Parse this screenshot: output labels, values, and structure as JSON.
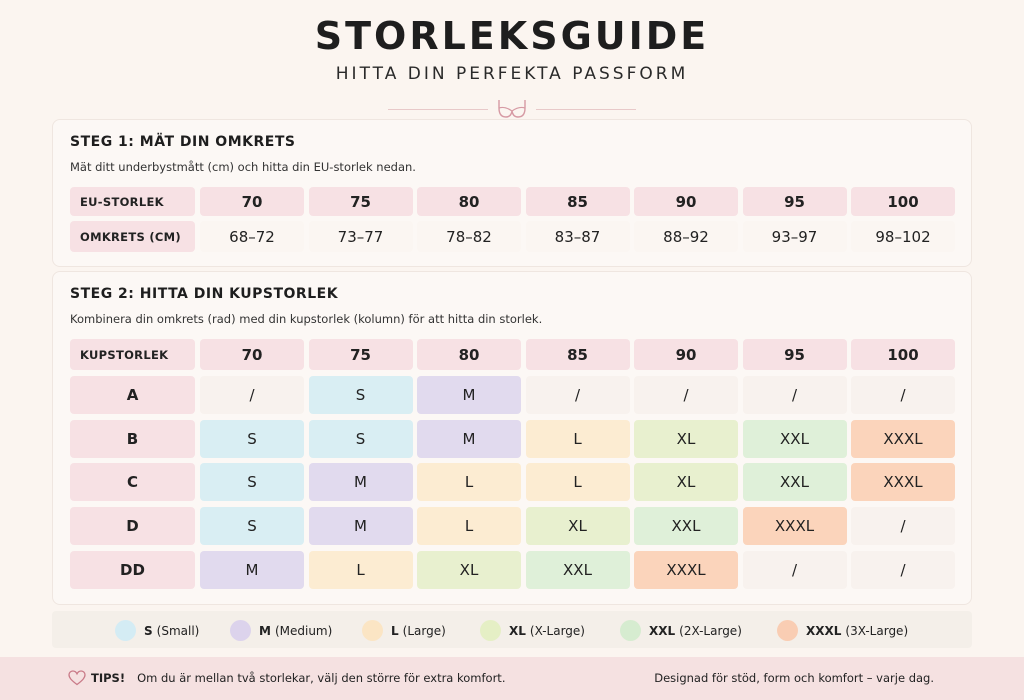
{
  "header": {
    "title": "STORLEKSGUIDE",
    "subtitle": "HITTA DIN PERFEKTA PASSFORM",
    "icon": "bra-icon"
  },
  "step1": {
    "heading": "STEG 1: MÄT DIN OMKRETS",
    "description": "Mät ditt underbystmått (cm) och hitta din EU-storlek nedan.",
    "eu_label": "EU-STORLEK",
    "measure_label": "OMKRETS (CM)",
    "eu_sizes": [
      "70",
      "75",
      "80",
      "85",
      "90",
      "95",
      "100"
    ],
    "measurements": [
      "68–72",
      "73–77",
      "78–82",
      "83–87",
      "88–92",
      "93–97",
      "98–102"
    ]
  },
  "step2": {
    "heading": "STEG 2: HITTA DIN KUPSTORLEK",
    "description": "Kombinera din omkrets (rad) med din kupstorlek (kolumn) för att hitta din storlek.",
    "corner_label": "KUPSTORLEK",
    "columns": [
      "70",
      "75",
      "80",
      "85",
      "90",
      "95",
      "100"
    ],
    "rows": [
      {
        "cup": "A",
        "values": [
          "/",
          "S",
          "M",
          "/",
          "/",
          "/",
          "/"
        ]
      },
      {
        "cup": "B",
        "values": [
          "S",
          "S",
          "M",
          "L",
          "XL",
          "XXL",
          "XXXL"
        ]
      },
      {
        "cup": "C",
        "values": [
          "S",
          "M",
          "L",
          "L",
          "XL",
          "XXL",
          "XXXL"
        ]
      },
      {
        "cup": "D",
        "values": [
          "S",
          "M",
          "L",
          "XL",
          "XXL",
          "XXXL",
          "/"
        ]
      },
      {
        "cup": "DD",
        "values": [
          "M",
          "L",
          "XL",
          "XXL",
          "XXXL",
          "/",
          "/"
        ]
      }
    ]
  },
  "legend": [
    {
      "code": "S",
      "desc": "(Small)",
      "color": "#d4ecf4"
    },
    {
      "code": "M",
      "desc": "(Medium)",
      "color": "#dcd3ec"
    },
    {
      "code": "L",
      "desc": "(Large)",
      "color": "#fbe5c4"
    },
    {
      "code": "XL",
      "desc": "(X-Large)",
      "color": "#e5efc5"
    },
    {
      "code": "XXL",
      "desc": "(2X-Large)",
      "color": "#d6ecd0"
    },
    {
      "code": "XXXL",
      "desc": "(3X-Large)",
      "color": "#f9cdb3"
    }
  ],
  "footer": {
    "tips_label": "TIPS!",
    "tips_text": "Om du är mellan två storlekar, välj den större för extra komfort.",
    "tagline": "Designad för stöd, form och komfort – varje dag.",
    "icon": "heart-icon"
  }
}
